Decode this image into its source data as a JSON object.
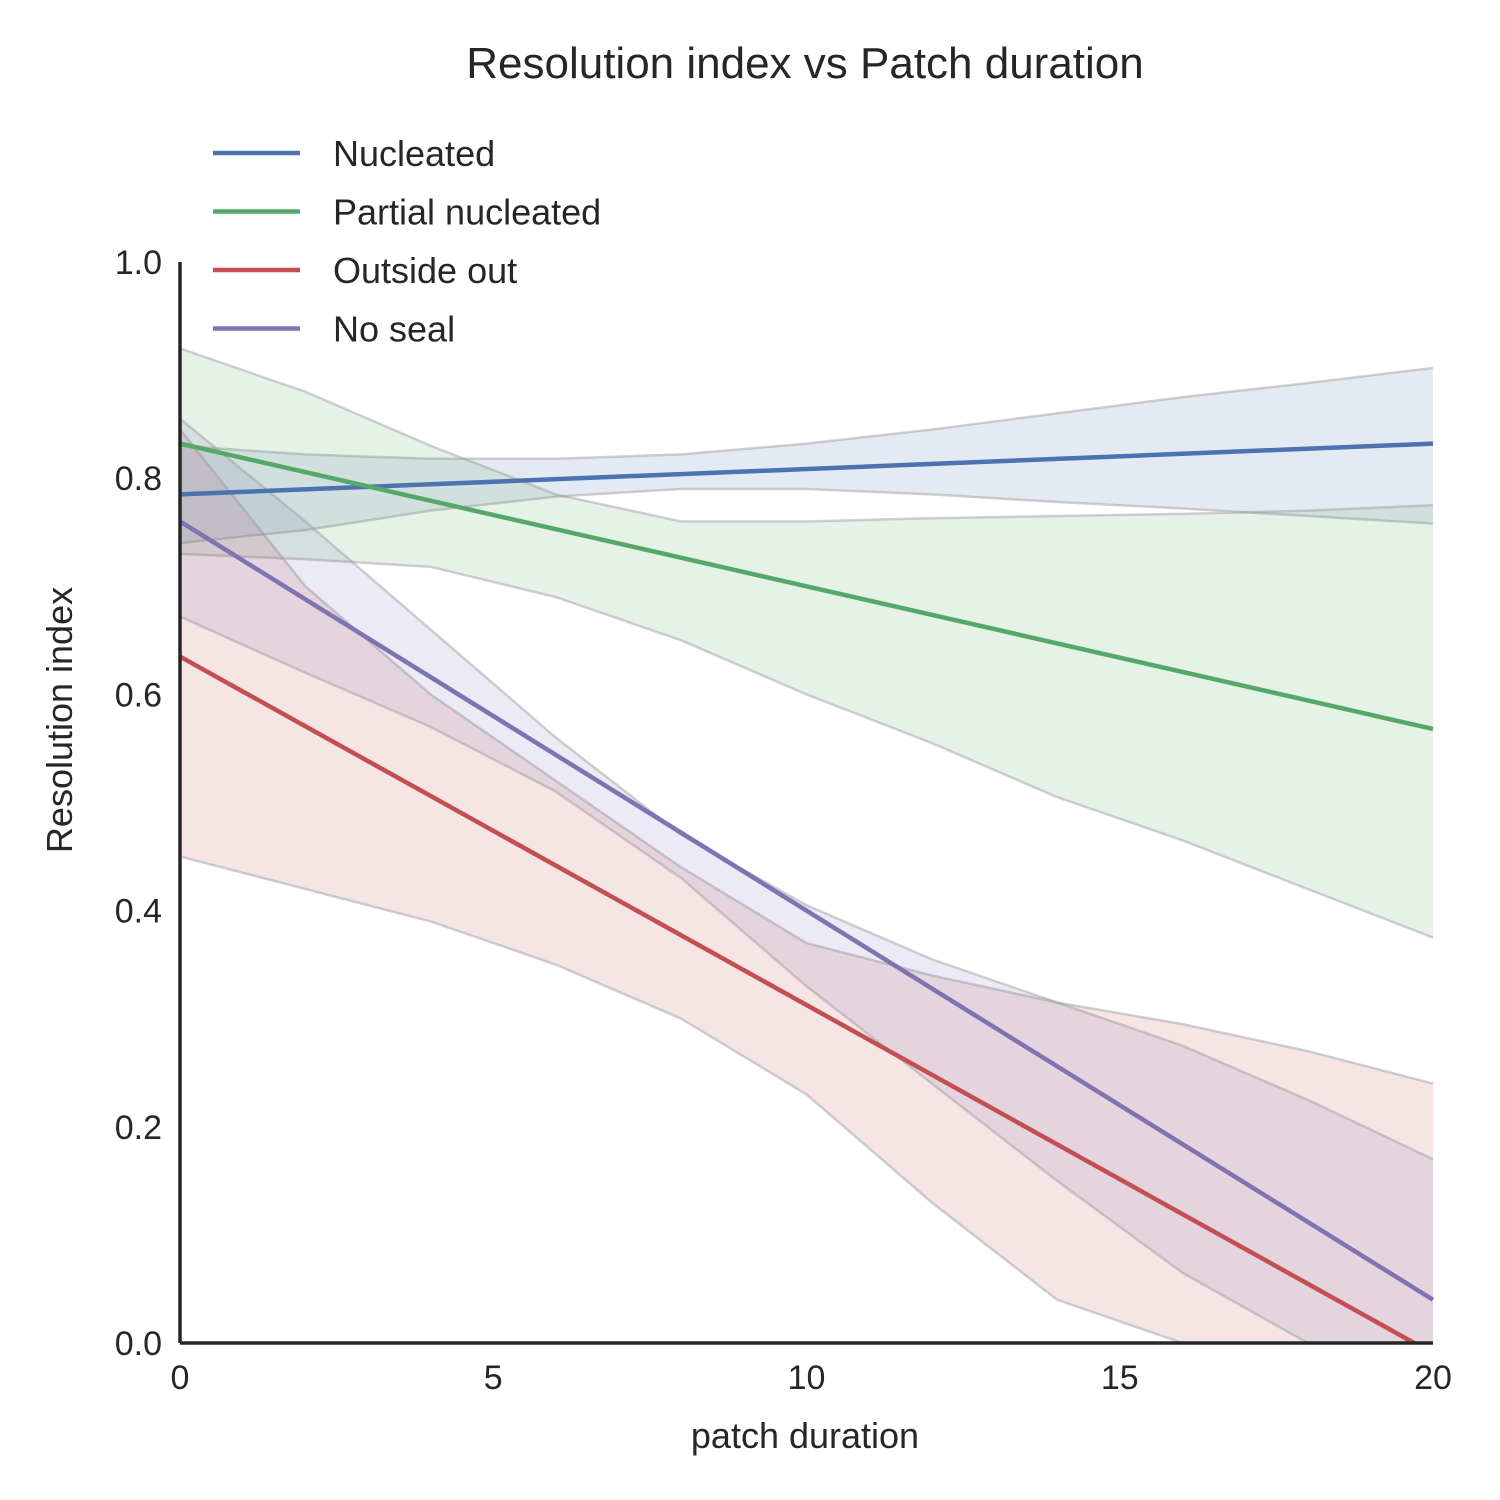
{
  "chart_data": {
    "type": "line",
    "title": "Resolution index vs Patch duration",
    "xlabel": "patch duration",
    "ylabel": "Resolution index",
    "xlim": [
      0,
      20
    ],
    "ylim": [
      0,
      1
    ],
    "xticks": [
      0,
      5,
      10,
      15,
      20
    ],
    "xtick_labels": [
      "0",
      "5",
      "10",
      "15",
      "20"
    ],
    "yticks": [
      0,
      0.2,
      0.4,
      0.6,
      0.8,
      1.0
    ],
    "ytick_labels": [
      "0.0",
      "0.2",
      "0.4",
      "0.6",
      "0.8",
      "1.0"
    ],
    "grid": false,
    "legend_position": "top-left",
    "series": [
      {
        "name": "Nucleated",
        "color": "#4c72b0",
        "x": [
          0,
          20
        ],
        "y": [
          0.785,
          0.832
        ],
        "ci_x": [
          0,
          2,
          4,
          6,
          8,
          10,
          12,
          14,
          16,
          18,
          20
        ],
        "ci_upper": [
          0.83,
          0.822,
          0.818,
          0.818,
          0.822,
          0.832,
          0.845,
          0.86,
          0.875,
          0.888,
          0.902
        ],
        "ci_lower": [
          0.74,
          0.752,
          0.77,
          0.783,
          0.79,
          0.79,
          0.785,
          0.778,
          0.772,
          0.765,
          0.758
        ]
      },
      {
        "name": "Partial nucleated",
        "color": "#55a868",
        "x": [
          0,
          20
        ],
        "y": [
          0.832,
          0.568
        ],
        "ci_x": [
          0,
          2,
          4,
          6,
          8,
          10,
          12,
          14,
          16,
          18,
          20
        ],
        "ci_upper": [
          0.92,
          0.88,
          0.83,
          0.785,
          0.76,
          0.76,
          0.763,
          0.765,
          0.767,
          0.77,
          0.775
        ],
        "ci_lower": [
          0.73,
          0.725,
          0.718,
          0.69,
          0.65,
          0.6,
          0.555,
          0.505,
          0.465,
          0.42,
          0.375
        ]
      },
      {
        "name": "Outside out",
        "color": "#c44e52",
        "x": [
          0,
          19.7
        ],
        "y": [
          0.635,
          0.0
        ],
        "ci_x": [
          0,
          2,
          4,
          6,
          8,
          10,
          12,
          14,
          16,
          18,
          20
        ],
        "ci_upper": [
          0.845,
          0.7,
          0.6,
          0.52,
          0.44,
          0.37,
          0.34,
          0.315,
          0.295,
          0.27,
          0.24
        ],
        "ci_lower": [
          0.45,
          0.42,
          0.39,
          0.35,
          0.3,
          0.23,
          0.13,
          0.04,
          0.0,
          0.0,
          0.0
        ]
      },
      {
        "name": "No seal",
        "color": "#8172b2",
        "x": [
          0,
          20
        ],
        "y": [
          0.76,
          0.04
        ],
        "ci_x": [
          0,
          2,
          4,
          6,
          8,
          10,
          12,
          14,
          16,
          18,
          20
        ],
        "ci_upper": [
          0.855,
          0.76,
          0.66,
          0.56,
          0.47,
          0.405,
          0.355,
          0.315,
          0.275,
          0.225,
          0.17
        ],
        "ci_lower": [
          0.672,
          0.62,
          0.57,
          0.51,
          0.43,
          0.33,
          0.24,
          0.15,
          0.065,
          0.0,
          0.0
        ]
      }
    ]
  }
}
